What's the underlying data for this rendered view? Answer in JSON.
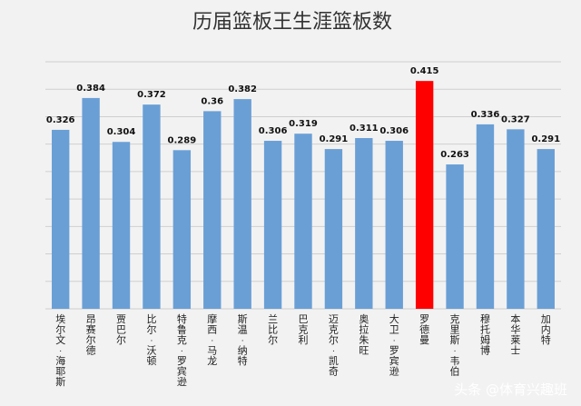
{
  "chart_data": {
    "type": "bar",
    "title": "历届篮板王生涯篮板数",
    "categories": [
      "埃尔文·海耶斯",
      "昂赛尔德",
      "贾巴尔",
      "比尔·沃顿",
      "特鲁克·罗宾逊",
      "摩西·马龙",
      "斯温·纳特",
      "兰比尔",
      "巴克利",
      "迈克尔·凯奇",
      "奥拉朱旺",
      "大卫·罗宾逊",
      "罗德曼",
      "克里斯·韦伯",
      "穆托姆博",
      "本华莱士",
      "加内特"
    ],
    "values": [
      0.326,
      0.384,
      0.304,
      0.372,
      0.289,
      0.36,
      0.382,
      0.306,
      0.319,
      0.291,
      0.311,
      0.306,
      0.415,
      0.263,
      0.336,
      0.327,
      0.291
    ],
    "value_labels": [
      "0.326",
      "0.384",
      "0.304",
      "0.372",
      "0.289",
      "0.36",
      "0.382",
      "0.306",
      "0.319",
      "0.291",
      "0.311",
      "0.306",
      "0.415",
      "0.263",
      "0.336",
      "0.327",
      "0.291"
    ],
    "ylim": [
      0,
      0.45
    ],
    "grid": true,
    "colors": {
      "bar": "#6a9fd6",
      "highlight": "#ff0000",
      "grid": "#cfcfcf"
    },
    "highlight_category": "罗德曼"
  },
  "watermark": {
    "text": "头条 @体育兴趣班"
  }
}
